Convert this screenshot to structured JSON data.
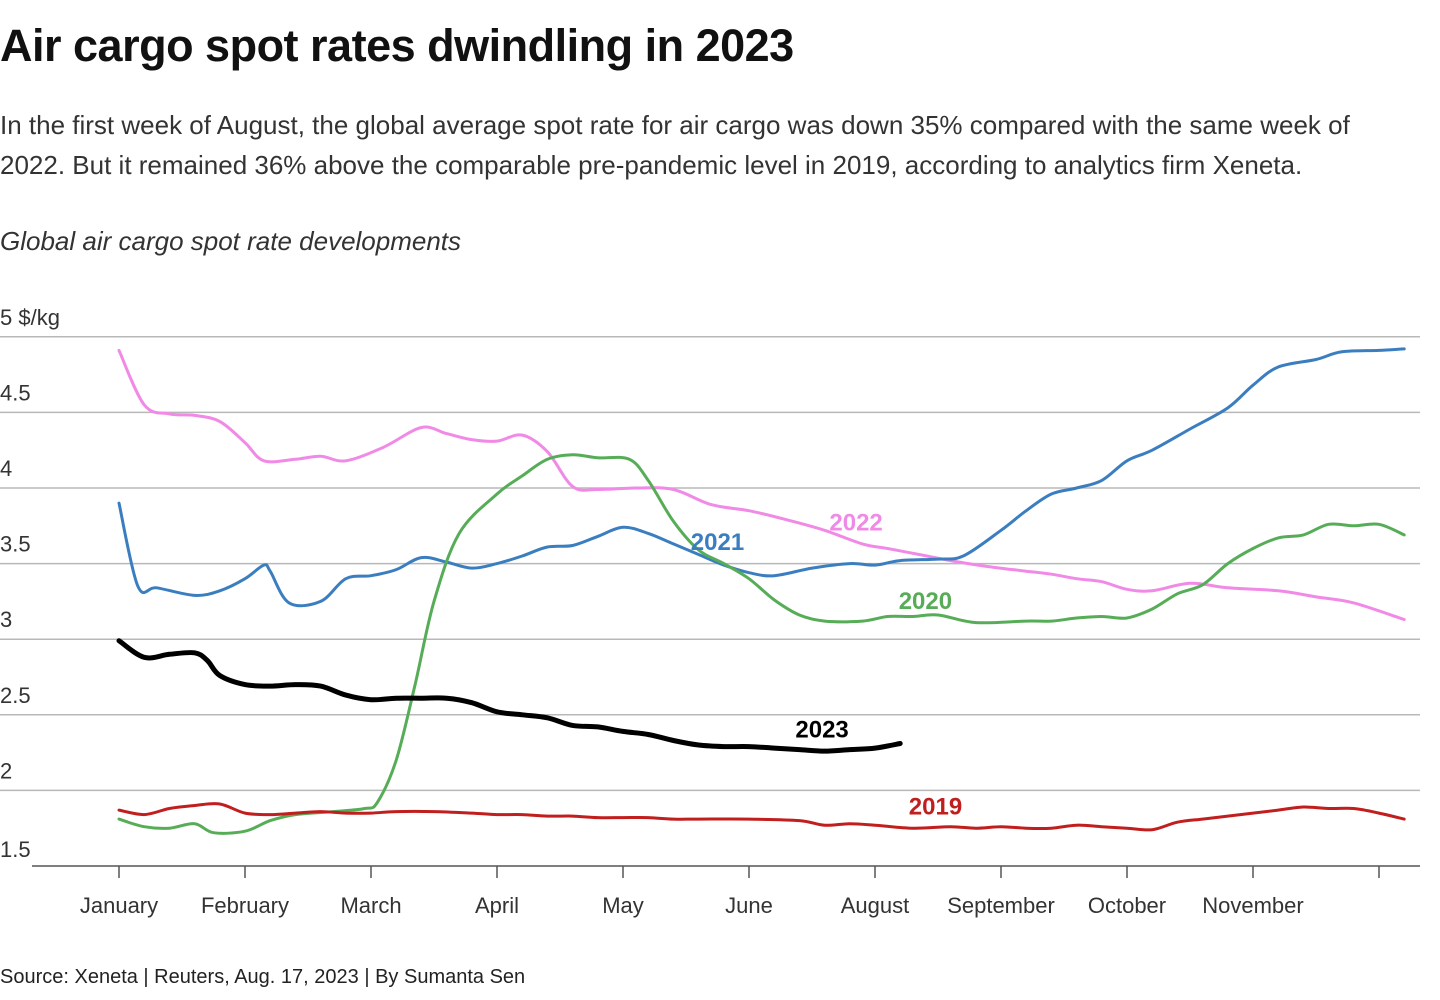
{
  "title": "Air cargo spot rates dwindling in 2023",
  "subtitle": "In the first week of August, the global average spot rate for air cargo was down 35% compared with the same week of 2022. But it remained 36% above the comparable pre-pandemic level in 2019, according to analytics firm Xeneta.",
  "chart_title": "Global air cargo spot rate developments",
  "source": "Source: Xeneta | Reuters, Aug. 17, 2023 | By Sumanta Sen",
  "chart_data": {
    "type": "line",
    "unit": "$/kg",
    "ylim": [
      1.5,
      5
    ],
    "xlim": [
      1,
      11.2
    ],
    "yticks": [
      {
        "value": 5,
        "label": "5 $/kg"
      },
      {
        "value": 4.5,
        "label": "4.5"
      },
      {
        "value": 4,
        "label": "4"
      },
      {
        "value": 3.5,
        "label": "3.5"
      },
      {
        "value": 3,
        "label": "3"
      },
      {
        "value": 2.5,
        "label": "2.5"
      },
      {
        "value": 2,
        "label": "2"
      },
      {
        "value": 1.5,
        "label": "1.5"
      }
    ],
    "xticks": [
      {
        "value": 1,
        "label": "January"
      },
      {
        "value": 2,
        "label": "February"
      },
      {
        "value": 3,
        "label": "March"
      },
      {
        "value": 4,
        "label": "April"
      },
      {
        "value": 5,
        "label": "May"
      },
      {
        "value": 6,
        "label": "June"
      },
      {
        "value": 7,
        "label": "August"
      },
      {
        "value": 8,
        "label": "September"
      },
      {
        "value": 9,
        "label": "October"
      },
      {
        "value": 10,
        "label": "November"
      }
    ],
    "extra_tick": 11,
    "grid": true,
    "legend": "direct labels",
    "series": [
      {
        "name": "2022",
        "color": "#f08ae6",
        "width": 3,
        "label_at": [
          6.85,
          3.72
        ],
        "points": [
          [
            1,
            4.91
          ],
          [
            1.2,
            4.55
          ],
          [
            1.4,
            4.49
          ],
          [
            1.6,
            4.48
          ],
          [
            1.8,
            4.44
          ],
          [
            2,
            4.3
          ],
          [
            2.15,
            4.18
          ],
          [
            2.4,
            4.19
          ],
          [
            2.6,
            4.21
          ],
          [
            2.8,
            4.18
          ],
          [
            3.1,
            4.27
          ],
          [
            3.4,
            4.4
          ],
          [
            3.6,
            4.36
          ],
          [
            3.8,
            4.32
          ],
          [
            4,
            4.31
          ],
          [
            4.2,
            4.35
          ],
          [
            4.4,
            4.24
          ],
          [
            4.6,
            4.01
          ],
          [
            4.8,
            3.99
          ],
          [
            5.1,
            4.0
          ],
          [
            5.4,
            3.99
          ],
          [
            5.7,
            3.89
          ],
          [
            6,
            3.85
          ],
          [
            6.3,
            3.79
          ],
          [
            6.6,
            3.72
          ],
          [
            6.9,
            3.63
          ],
          [
            7.1,
            3.6
          ],
          [
            7.35,
            3.56
          ],
          [
            7.6,
            3.52
          ],
          [
            7.9,
            3.48
          ],
          [
            8.2,
            3.45
          ],
          [
            8.4,
            3.43
          ],
          [
            8.6,
            3.4
          ],
          [
            8.8,
            3.38
          ],
          [
            9,
            3.33
          ],
          [
            9.2,
            3.32
          ],
          [
            9.5,
            3.37
          ],
          [
            9.8,
            3.34
          ],
          [
            10.2,
            3.32
          ],
          [
            10.5,
            3.28
          ],
          [
            10.8,
            3.24
          ],
          [
            11.2,
            3.13
          ]
        ]
      },
      {
        "name": "2021",
        "color": "#3b7ec0",
        "width": 3,
        "label_at": [
          5.75,
          3.59
        ],
        "points": [
          [
            1,
            3.9
          ],
          [
            1.15,
            3.35
          ],
          [
            1.3,
            3.34
          ],
          [
            1.6,
            3.29
          ],
          [
            1.8,
            3.32
          ],
          [
            2,
            3.4
          ],
          [
            2.15,
            3.49
          ],
          [
            2.2,
            3.45
          ],
          [
            2.35,
            3.24
          ],
          [
            2.6,
            3.25
          ],
          [
            2.8,
            3.4
          ],
          [
            3,
            3.42
          ],
          [
            3.2,
            3.46
          ],
          [
            3.4,
            3.54
          ],
          [
            3.6,
            3.51
          ],
          [
            3.8,
            3.47
          ],
          [
            4,
            3.5
          ],
          [
            4.2,
            3.55
          ],
          [
            4.4,
            3.61
          ],
          [
            4.6,
            3.62
          ],
          [
            4.8,
            3.68
          ],
          [
            5,
            3.74
          ],
          [
            5.2,
            3.7
          ],
          [
            5.4,
            3.63
          ],
          [
            5.6,
            3.56
          ],
          [
            5.8,
            3.49
          ],
          [
            6,
            3.44
          ],
          [
            6.2,
            3.42
          ],
          [
            6.5,
            3.47
          ],
          [
            6.8,
            3.5
          ],
          [
            7,
            3.49
          ],
          [
            7.2,
            3.52
          ],
          [
            7.5,
            3.53
          ],
          [
            7.7,
            3.55
          ],
          [
            8,
            3.72
          ],
          [
            8.2,
            3.85
          ],
          [
            8.4,
            3.96
          ],
          [
            8.6,
            4.0
          ],
          [
            8.8,
            4.05
          ],
          [
            9,
            4.18
          ],
          [
            9.2,
            4.25
          ],
          [
            9.5,
            4.39
          ],
          [
            9.8,
            4.53
          ],
          [
            10,
            4.68
          ],
          [
            10.2,
            4.8
          ],
          [
            10.5,
            4.85
          ],
          [
            10.7,
            4.9
          ],
          [
            11,
            4.91
          ],
          [
            11.2,
            4.92
          ]
        ]
      },
      {
        "name": "2020",
        "color": "#57ad57",
        "width": 3,
        "label_at": [
          7.4,
          3.2
        ],
        "points": [
          [
            1,
            1.81
          ],
          [
            1.2,
            1.76
          ],
          [
            1.4,
            1.75
          ],
          [
            1.6,
            1.78
          ],
          [
            1.75,
            1.72
          ],
          [
            2,
            1.73
          ],
          [
            2.2,
            1.8
          ],
          [
            2.4,
            1.84
          ],
          [
            2.7,
            1.86
          ],
          [
            2.95,
            1.88
          ],
          [
            3.05,
            1.92
          ],
          [
            3.2,
            2.2
          ],
          [
            3.35,
            2.7
          ],
          [
            3.5,
            3.25
          ],
          [
            3.7,
            3.7
          ],
          [
            4,
            3.96
          ],
          [
            4.2,
            4.08
          ],
          [
            4.4,
            4.19
          ],
          [
            4.6,
            4.22
          ],
          [
            4.8,
            4.2
          ],
          [
            5.05,
            4.19
          ],
          [
            5.2,
            4.05
          ],
          [
            5.4,
            3.78
          ],
          [
            5.6,
            3.59
          ],
          [
            5.8,
            3.5
          ],
          [
            6,
            3.4
          ],
          [
            6.2,
            3.26
          ],
          [
            6.4,
            3.16
          ],
          [
            6.6,
            3.12
          ],
          [
            6.9,
            3.12
          ],
          [
            7.1,
            3.15
          ],
          [
            7.3,
            3.15
          ],
          [
            7.5,
            3.16
          ],
          [
            7.8,
            3.11
          ],
          [
            8.2,
            3.12
          ],
          [
            8.4,
            3.12
          ],
          [
            8.6,
            3.14
          ],
          [
            8.8,
            3.15
          ],
          [
            9,
            3.14
          ],
          [
            9.2,
            3.2
          ],
          [
            9.4,
            3.3
          ],
          [
            9.6,
            3.36
          ],
          [
            9.8,
            3.5
          ],
          [
            10,
            3.6
          ],
          [
            10.2,
            3.67
          ],
          [
            10.4,
            3.69
          ],
          [
            10.6,
            3.76
          ],
          [
            10.8,
            3.75
          ],
          [
            11,
            3.76
          ],
          [
            11.2,
            3.69
          ]
        ]
      },
      {
        "name": "2023",
        "color": "#000000",
        "width": 5,
        "label_at": [
          6.58,
          2.35
        ],
        "points": [
          [
            1,
            2.99
          ],
          [
            1.2,
            2.88
          ],
          [
            1.4,
            2.9
          ],
          [
            1.6,
            2.91
          ],
          [
            1.7,
            2.86
          ],
          [
            1.8,
            2.76
          ],
          [
            2,
            2.7
          ],
          [
            2.2,
            2.69
          ],
          [
            2.4,
            2.7
          ],
          [
            2.6,
            2.69
          ],
          [
            2.8,
            2.63
          ],
          [
            3,
            2.6
          ],
          [
            3.2,
            2.61
          ],
          [
            3.4,
            2.61
          ],
          [
            3.6,
            2.61
          ],
          [
            3.8,
            2.58
          ],
          [
            4,
            2.52
          ],
          [
            4.2,
            2.5
          ],
          [
            4.4,
            2.48
          ],
          [
            4.6,
            2.43
          ],
          [
            4.8,
            2.42
          ],
          [
            5,
            2.39
          ],
          [
            5.2,
            2.37
          ],
          [
            5.4,
            2.33
          ],
          [
            5.6,
            2.3
          ],
          [
            5.8,
            2.29
          ],
          [
            6,
            2.29
          ],
          [
            6.2,
            2.28
          ],
          [
            6.4,
            2.27
          ],
          [
            6.6,
            2.26
          ],
          [
            6.8,
            2.27
          ],
          [
            7,
            2.28
          ],
          [
            7.2,
            2.31
          ]
        ]
      },
      {
        "name": "2019",
        "color": "#c11e1e",
        "width": 3,
        "label_at": [
          7.48,
          1.84
        ],
        "points": [
          [
            1,
            1.87
          ],
          [
            1.2,
            1.84
          ],
          [
            1.4,
            1.88
          ],
          [
            1.6,
            1.9
          ],
          [
            1.8,
            1.91
          ],
          [
            2,
            1.85
          ],
          [
            2.2,
            1.84
          ],
          [
            2.4,
            1.85
          ],
          [
            2.6,
            1.86
          ],
          [
            2.8,
            1.85
          ],
          [
            3,
            1.85
          ],
          [
            3.2,
            1.86
          ],
          [
            3.5,
            1.86
          ],
          [
            3.8,
            1.85
          ],
          [
            4,
            1.84
          ],
          [
            4.2,
            1.84
          ],
          [
            4.4,
            1.83
          ],
          [
            4.6,
            1.83
          ],
          [
            4.8,
            1.82
          ],
          [
            5,
            1.82
          ],
          [
            5.2,
            1.82
          ],
          [
            5.4,
            1.81
          ],
          [
            5.6,
            1.81
          ],
          [
            6,
            1.81
          ],
          [
            6.4,
            1.8
          ],
          [
            6.6,
            1.77
          ],
          [
            6.8,
            1.78
          ],
          [
            7,
            1.77
          ],
          [
            7.3,
            1.75
          ],
          [
            7.6,
            1.76
          ],
          [
            7.8,
            1.75
          ],
          [
            8,
            1.76
          ],
          [
            8.2,
            1.75
          ],
          [
            8.4,
            1.75
          ],
          [
            8.6,
            1.77
          ],
          [
            8.8,
            1.76
          ],
          [
            9,
            1.75
          ],
          [
            9.2,
            1.74
          ],
          [
            9.4,
            1.79
          ],
          [
            9.6,
            1.81
          ],
          [
            9.8,
            1.83
          ],
          [
            10,
            1.85
          ],
          [
            10.2,
            1.87
          ],
          [
            10.4,
            1.89
          ],
          [
            10.6,
            1.88
          ],
          [
            10.8,
            1.88
          ],
          [
            11,
            1.85
          ],
          [
            11.2,
            1.81
          ]
        ]
      }
    ]
  }
}
